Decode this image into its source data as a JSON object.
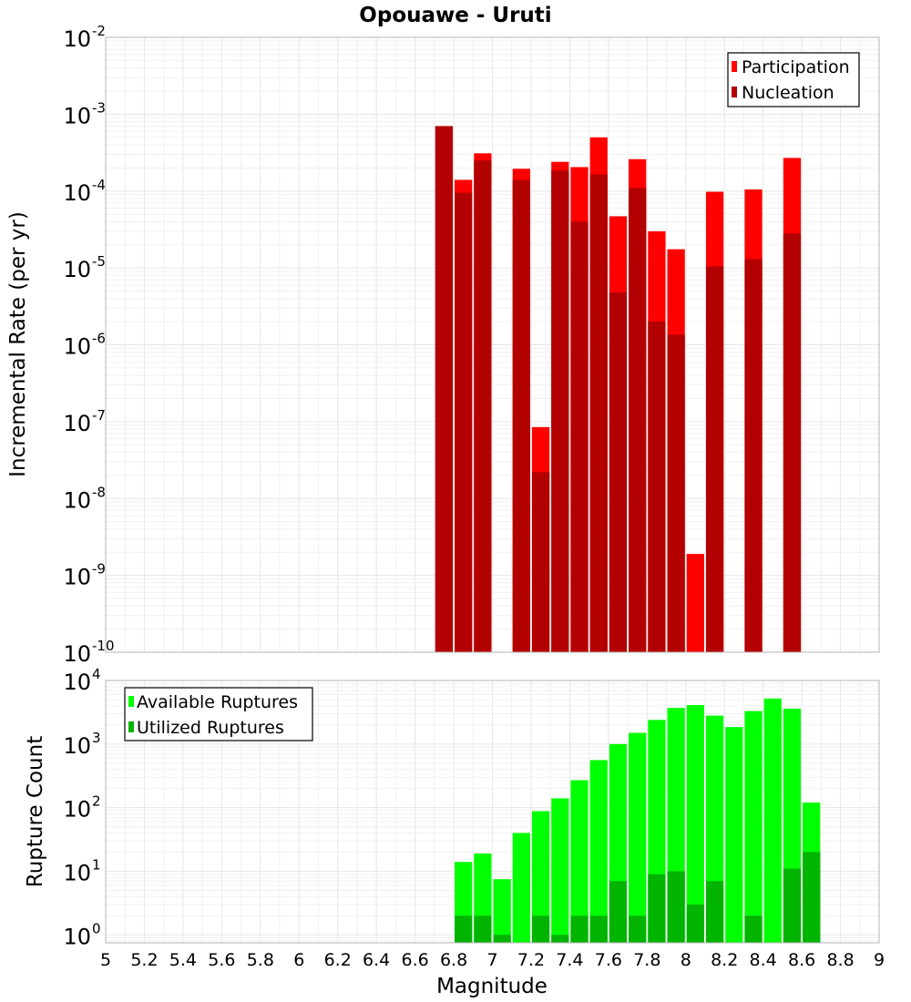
{
  "colors": {
    "participation": "#ff0000",
    "nucleation": "#b30000",
    "available": "#00ff00",
    "utilized": "#00b400"
  },
  "chart_data": [
    {
      "type": "bar",
      "title": "Opouawe - Uruti",
      "ylabel": "Incremental Rate (per yr)",
      "xlabel": "",
      "yscale": "log",
      "ylim": [
        1e-10,
        0.01
      ],
      "xlim": [
        5,
        9
      ],
      "grid": true,
      "legend_position": "top-right",
      "legend": [
        "Participation",
        "Nucleation"
      ],
      "bar_width": 0.1,
      "x": [
        6.75,
        6.85,
        6.95,
        7.15,
        7.25,
        7.35,
        7.45,
        7.55,
        7.65,
        7.75,
        7.85,
        7.95,
        8.05,
        8.15,
        8.35,
        8.55,
        8.65
      ],
      "series": [
        {
          "name": "Participation",
          "values": [
            0.0007,
            0.00014,
            0.00031,
            0.000195,
            8.5e-08,
            0.00024,
            0.000205,
            0.0005,
            4.7e-05,
            0.00026,
            3e-05,
            1.75e-05,
            1.9e-09,
            9.8e-05,
            0.000105,
            0.00027,
            null
          ]
        },
        {
          "name": "Nucleation",
          "values": [
            0.0007,
            9.5e-05,
            0.00025,
            0.00014,
            2.2e-08,
            0.000185,
            4e-05,
            0.000165,
            4.8e-06,
            0.00011,
            2e-06,
            1.35e-06,
            null,
            1.05e-05,
            1.3e-05,
            2.8e-05,
            null
          ]
        }
      ]
    },
    {
      "type": "bar",
      "title": "",
      "ylabel": "Rupture Count",
      "xlabel": "Magnitude",
      "yscale": "log",
      "ylim": [
        0.75,
        10000
      ],
      "xlim": [
        5,
        9
      ],
      "grid": true,
      "legend_position": "top-left",
      "legend": [
        "Available Ruptures",
        "Utilized Ruptures"
      ],
      "bar_width": 0.1,
      "x": [
        6.85,
        6.95,
        7.05,
        7.15,
        7.25,
        7.35,
        7.45,
        7.55,
        7.65,
        7.75,
        7.85,
        7.95,
        8.05,
        8.15,
        8.25,
        8.35,
        8.45,
        8.55,
        8.65
      ],
      "series": [
        {
          "name": "Available Ruptures",
          "values": [
            14,
            19,
            7.5,
            40,
            88,
            140,
            270,
            560,
            1000,
            1500,
            2400,
            3700,
            4100,
            2800,
            1850,
            3300,
            5200,
            3600,
            120
          ]
        },
        {
          "name": "Utilized Ruptures",
          "values": [
            2,
            2,
            1,
            null,
            2,
            1,
            2,
            2,
            7,
            2,
            9,
            10,
            3,
            7,
            null,
            2,
            null,
            11,
            20
          ]
        }
      ]
    }
  ],
  "top_axis": {
    "tick_base": "10",
    "tick_exponents": [
      "-10",
      "-9",
      "-8",
      "-7",
      "-6",
      "-5",
      "-4",
      "-3",
      "-2"
    ]
  },
  "bottom_axis": {
    "tick_base": "10",
    "tick_exponents": [
      "0",
      "1",
      "2",
      "3",
      "4"
    ]
  },
  "x_tick_labels": [
    "5",
    "5.2",
    "5.4",
    "5.6",
    "5.8",
    "6",
    "6.2",
    "6.4",
    "6.6",
    "6.8",
    "7",
    "7.2",
    "7.4",
    "7.6",
    "7.8",
    "8",
    "8.2",
    "8.4",
    "8.6",
    "8.8",
    "9"
  ]
}
